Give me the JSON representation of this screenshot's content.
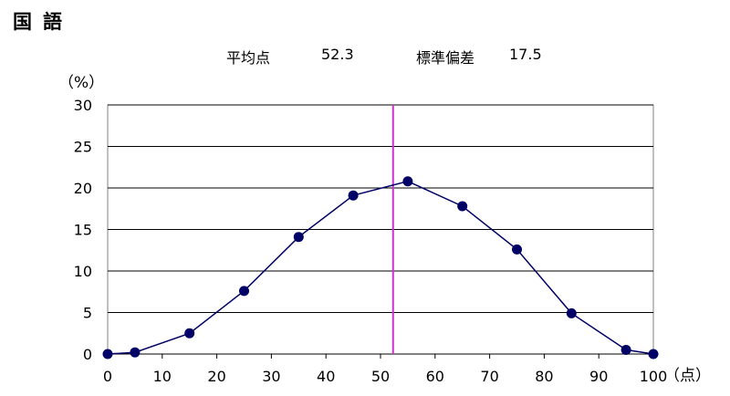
{
  "subject": "国語",
  "stats": {
    "mean_label": "平均点",
    "mean_value": "52.3",
    "sd_label": "標準偏差",
    "sd_value": "17.5"
  },
  "chart_data": {
    "type": "line",
    "x": [
      0,
      5,
      15,
      25,
      35,
      45,
      55,
      65,
      75,
      85,
      95,
      100
    ],
    "y": [
      0.0,
      0.2,
      2.5,
      7.6,
      14.1,
      19.1,
      20.8,
      17.8,
      12.6,
      4.9,
      0.5,
      0.0
    ],
    "xlim": [
      0,
      100
    ],
    "ylim": [
      0,
      30
    ],
    "x_ticks": [
      0,
      10,
      20,
      30,
      40,
      50,
      60,
      70,
      80,
      90,
      100
    ],
    "y_ticks": [
      0,
      5,
      10,
      15,
      20,
      25,
      30
    ],
    "xlabel": "（点）",
    "ylabel": "（%）",
    "mean_line": 52.3,
    "grid": "horizontal",
    "colors": {
      "series": "#000066",
      "mean_line": "#cc33cc",
      "grid": "#000000"
    }
  }
}
